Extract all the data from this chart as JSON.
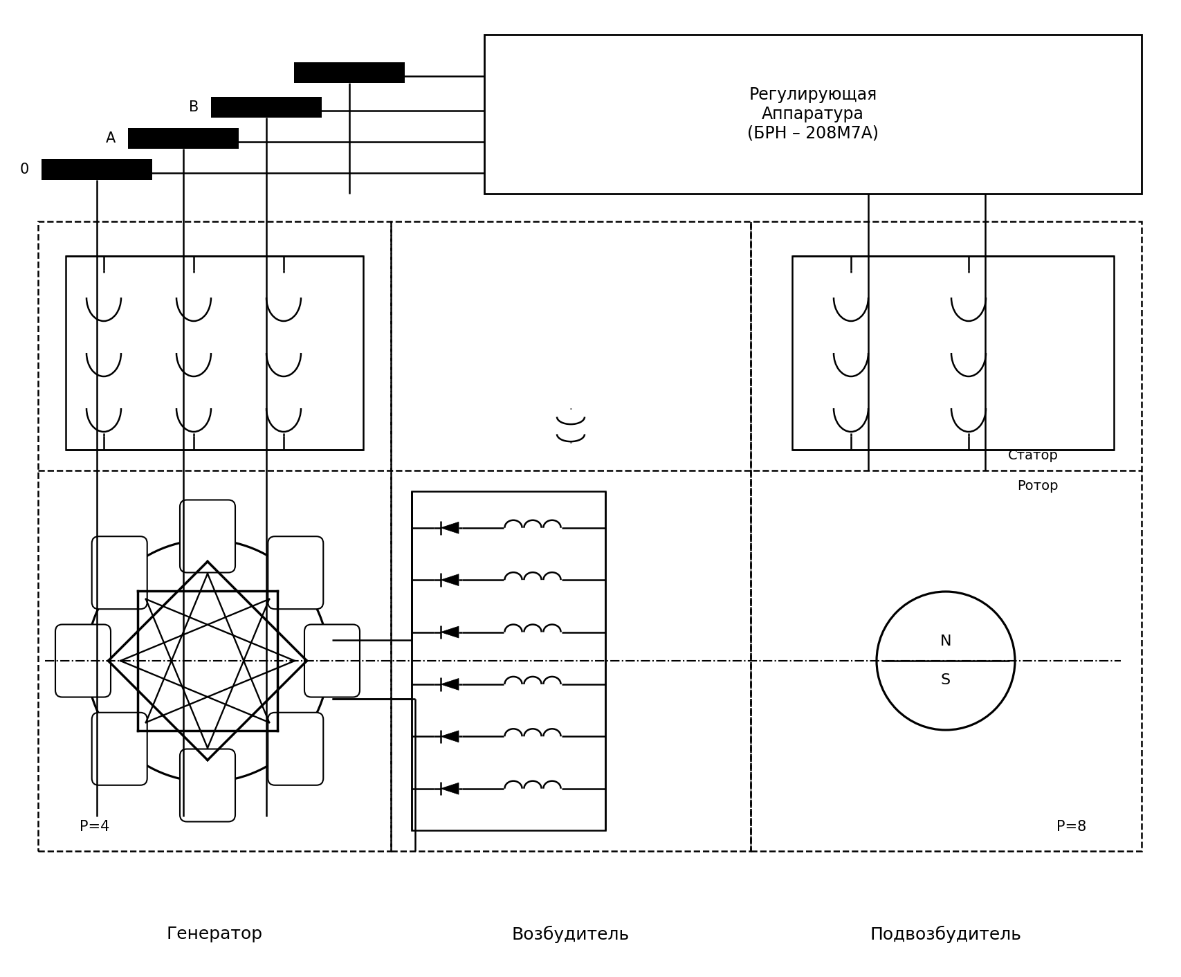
{
  "bg_color": "#ffffff",
  "lw": 1.8,
  "lw_thick": 2.5,
  "lw_thin": 1.2,
  "labels": {
    "zero": "0",
    "A": "A",
    "B": "B",
    "reg_box": "Регулирующая\nАппаратура\n(БРН – 208М7А)",
    "stator": "Статор",
    "rotor": "Ротор",
    "generator": "Генератор",
    "vozbuditel": "Возбудитель",
    "podvozbuditel": "Подвозбудитель",
    "p4": "P=4",
    "p8": "P=8",
    "N": "N",
    "S": "S"
  },
  "figsize": [
    17.07,
    14.12
  ],
  "dpi": 100
}
